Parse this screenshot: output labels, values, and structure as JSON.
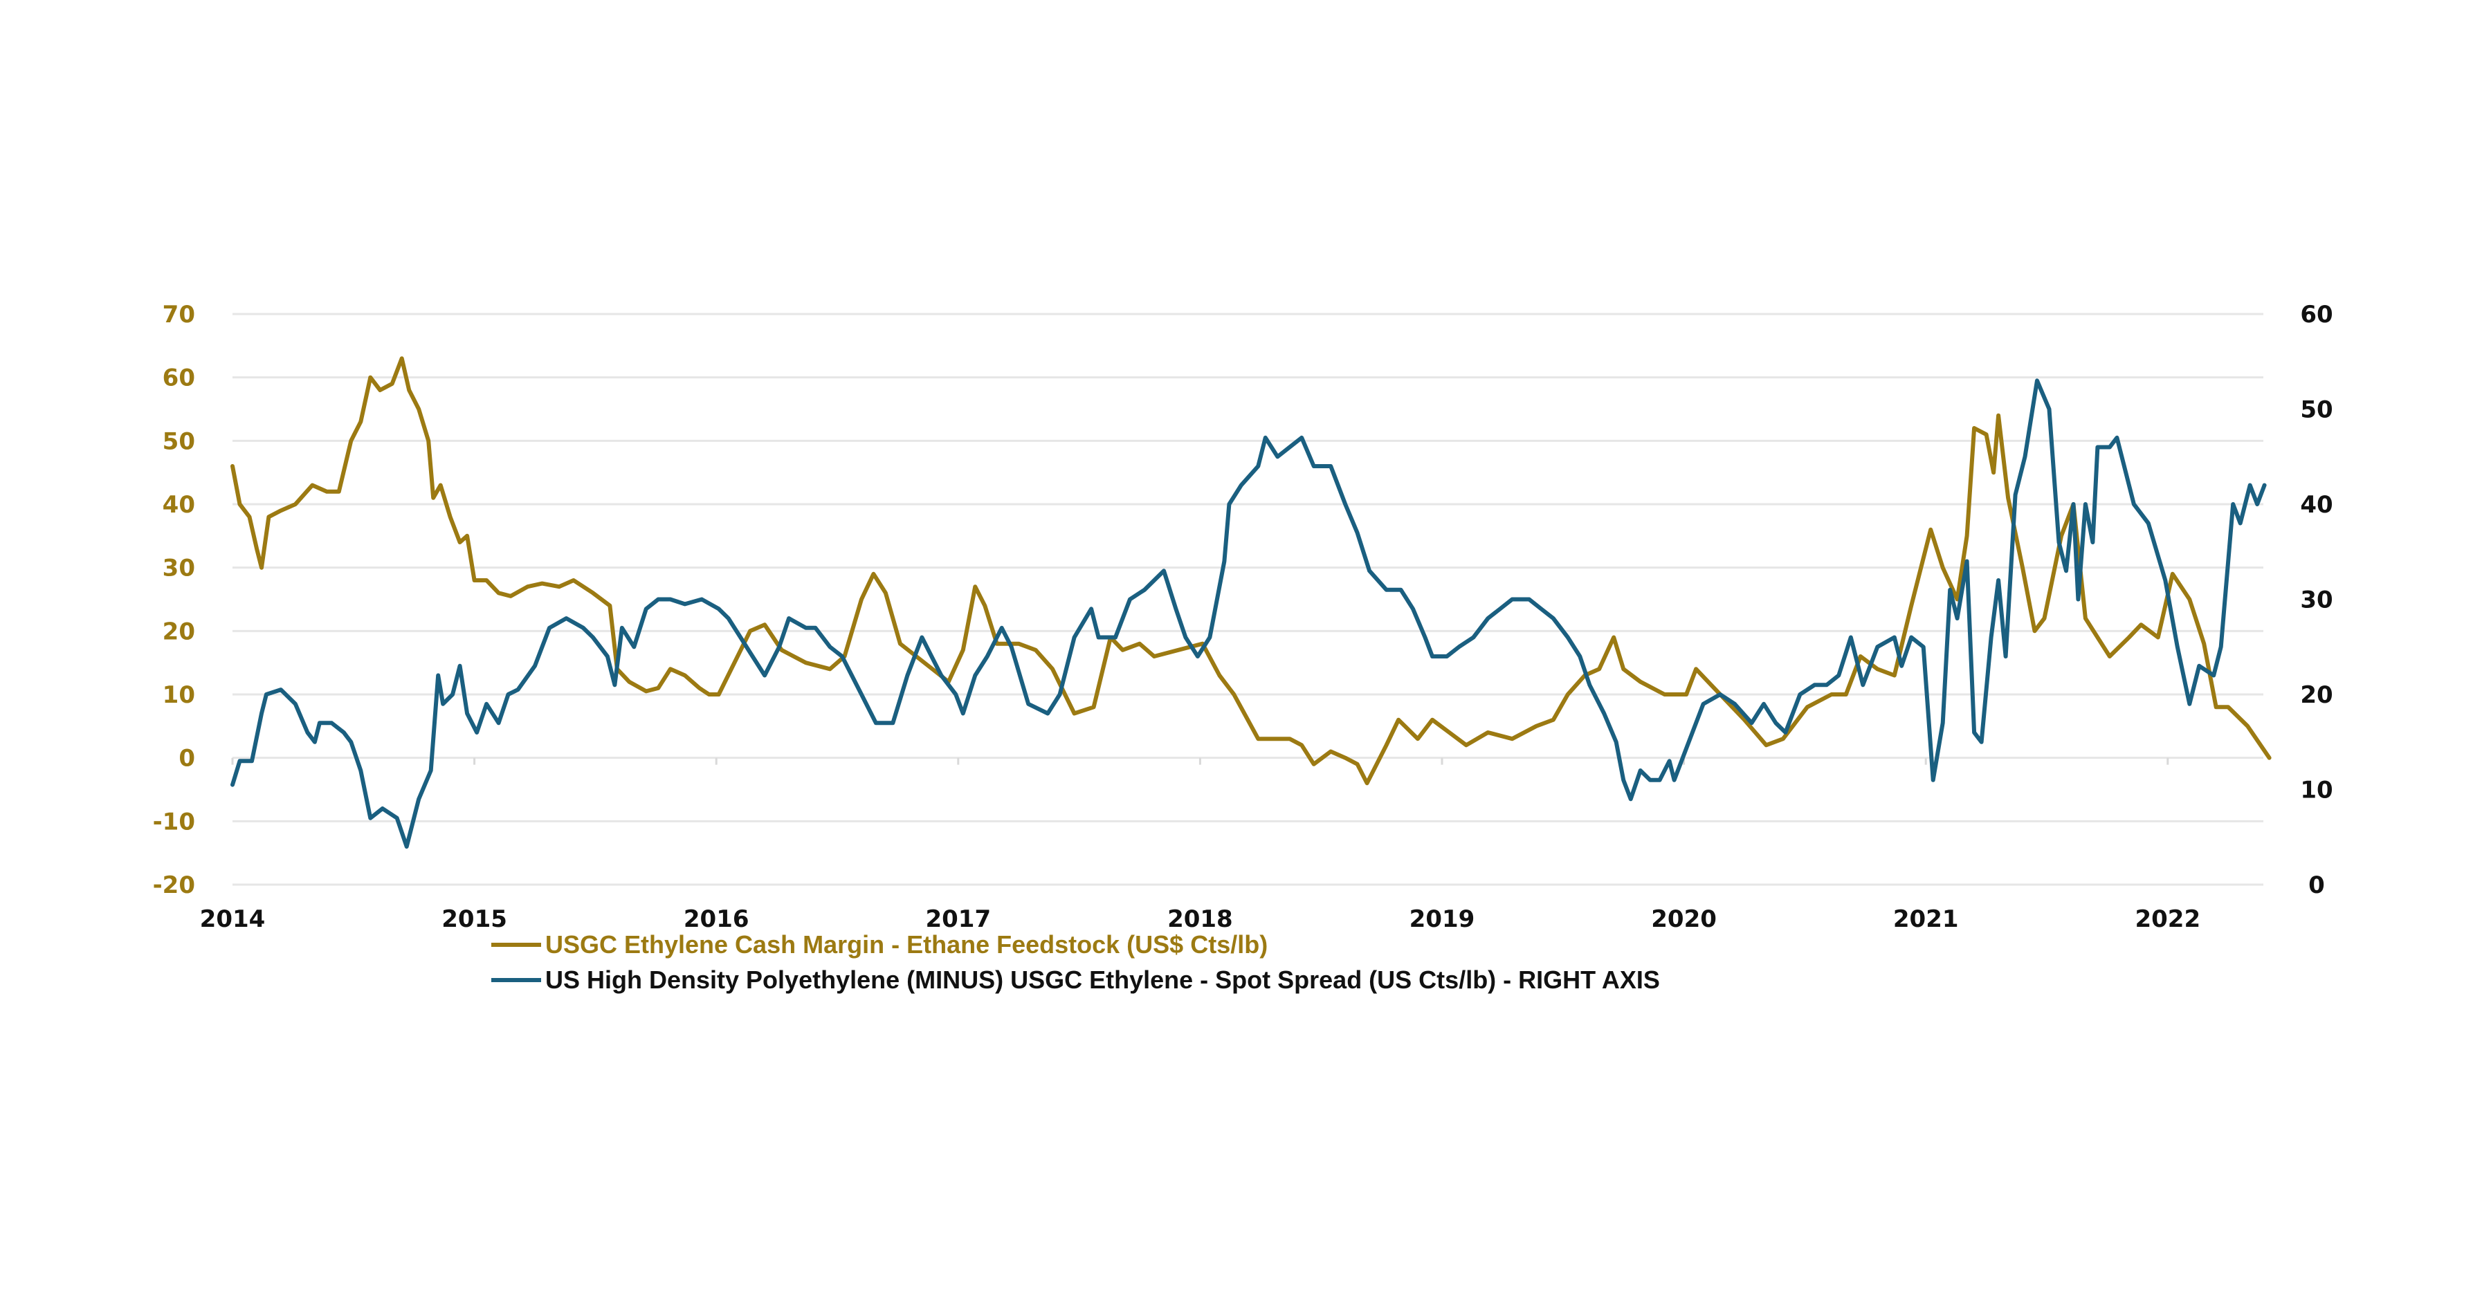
{
  "colors": {
    "series1": "#9C7A12",
    "series2": "#1A5F80",
    "grid": "#E6E6E6",
    "axis_text_right": "#111111"
  },
  "chart_data": {
    "type": "line",
    "title": "",
    "xlabel": "",
    "ylabel": "",
    "x_ticks": [
      "2014",
      "2015",
      "2016",
      "2017",
      "2018",
      "2019",
      "2020",
      "2021",
      "2022"
    ],
    "x_tick_values": [
      2014,
      2015,
      2016,
      2017,
      2018,
      2019,
      2020,
      2021,
      2022
    ],
    "xlim": [
      2014,
      2022.42
    ],
    "y_left": {
      "ticks": [
        "70",
        "60",
        "50",
        "40",
        "30",
        "20",
        "10",
        "0",
        "-10",
        "-20"
      ],
      "tick_values": [
        70,
        60,
        50,
        40,
        30,
        20,
        10,
        0,
        -10,
        -20
      ],
      "ylim": [
        -20,
        70
      ]
    },
    "y_right": {
      "ticks": [
        "60",
        "50",
        "40",
        "30",
        "20",
        "10",
        "0"
      ],
      "tick_values": [
        60,
        50,
        40,
        30,
        20,
        10,
        0
      ],
      "ylim": [
        0,
        60
      ]
    },
    "grid": true,
    "legend_position": "bottom",
    "series": [
      {
        "name": "USGC Ethylene Cash Margin - Ethane Feedstock (US$ Cts/lb)",
        "axis": "left",
        "x": [
          2014.0,
          2014.03,
          2014.07,
          2014.1,
          2014.12,
          2014.15,
          2014.2,
          2014.26,
          2014.33,
          2014.39,
          2014.44,
          2014.49,
          2014.53,
          2014.57,
          2014.61,
          2014.66,
          2014.7,
          2014.73,
          2014.77,
          2014.81,
          2014.83,
          2014.86,
          2014.9,
          2014.94,
          2014.97,
          2015.0,
          2015.05,
          2015.1,
          2015.15,
          2015.22,
          2015.28,
          2015.35,
          2015.41,
          2015.49,
          2015.56,
          2015.59,
          2015.64,
          2015.71,
          2015.76,
          2015.81,
          2015.87,
          2015.93,
          2015.97,
          2016.01,
          2016.14,
          2016.2,
          2016.27,
          2016.37,
          2016.47,
          2016.53,
          2016.6,
          2016.65,
          2016.7,
          2016.76,
          2016.86,
          2016.96,
          2017.02,
          2017.07,
          2017.11,
          2017.16,
          2017.25,
          2017.32,
          2017.39,
          2017.48,
          2017.56,
          2017.63,
          2017.68,
          2017.75,
          2017.81,
          2017.91,
          2018.01,
          2018.08,
          2018.14,
          2018.24,
          2018.37,
          2018.42,
          2018.47,
          2018.54,
          2018.6,
          2018.65,
          2018.69,
          2018.77,
          2018.82,
          2018.9,
          2018.96,
          2019.03,
          2019.1,
          2019.19,
          2019.29,
          2019.39,
          2019.46,
          2019.52,
          2019.59,
          2019.65,
          2019.71,
          2019.75,
          2019.82,
          2019.92,
          2020.01,
          2020.05,
          2020.15,
          2020.25,
          2020.34,
          2020.41,
          2020.51,
          2020.61,
          2020.67,
          2020.73,
          2020.8,
          2020.87,
          2020.94,
          2020.98,
          2021.02,
          2021.07,
          2021.13,
          2021.17,
          2021.2,
          2021.25,
          2021.28,
          2021.3,
          2021.34,
          2021.4,
          2021.45,
          2021.49,
          2021.56,
          2021.61,
          2021.66,
          2021.76,
          2021.84,
          2021.89,
          2021.96,
          2022.02,
          2022.09,
          2022.15,
          2022.2,
          2022.25,
          2022.33,
          2022.42
        ],
        "values": [
          46,
          40,
          38,
          33,
          30,
          38,
          39,
          40,
          43,
          42,
          42,
          50,
          53,
          60,
          58,
          59,
          63,
          58,
          55,
          50,
          41,
          43,
          38,
          34,
          35,
          28,
          28,
          26,
          25.5,
          27,
          27.5,
          27,
          28,
          26,
          24,
          14,
          12,
          10.5,
          11,
          14,
          13,
          11,
          10,
          10,
          20,
          21,
          17,
          15,
          14,
          16,
          25,
          29,
          26,
          18,
          15,
          12,
          17,
          27,
          24,
          18,
          18,
          17,
          14,
          7,
          8,
          19,
          17,
          18,
          16,
          17,
          18,
          13,
          10,
          3,
          3,
          2,
          -1,
          1,
          0,
          -1,
          -4,
          2,
          6,
          3,
          6,
          4,
          2,
          4,
          3,
          5,
          6,
          10,
          13,
          14,
          19,
          14,
          12,
          10,
          10,
          14,
          10,
          6,
          2,
          3,
          8,
          10,
          10,
          16,
          14,
          13,
          24,
          30,
          36,
          30,
          25,
          35,
          52,
          51,
          45,
          54,
          41,
          30,
          20,
          22,
          35,
          40,
          22,
          16,
          19,
          21,
          19,
          29,
          25,
          18,
          8,
          8,
          5,
          0
        ]
      },
      {
        "name": "US High Density Polyethylene (MINUS) USGC Ethylene - Spot Spread (US Cts/lb) - RIGHT AXIS",
        "axis": "right",
        "x": [
          2014.0,
          2014.03,
          2014.08,
          2014.12,
          2014.14,
          2014.2,
          2014.26,
          2014.31,
          2014.34,
          2014.36,
          2014.41,
          2014.46,
          2014.49,
          2014.53,
          2014.57,
          2014.62,
          2014.68,
          2014.72,
          2014.77,
          2014.82,
          2014.85,
          2014.87,
          2014.91,
          2014.94,
          2014.97,
          2015.01,
          2015.05,
          2015.1,
          2015.14,
          2015.18,
          2015.25,
          2015.31,
          2015.38,
          2015.45,
          2015.49,
          2015.55,
          2015.58,
          2015.61,
          2015.66,
          2015.71,
          2015.76,
          2015.81,
          2015.87,
          2015.94,
          2016.01,
          2016.05,
          2016.1,
          2016.15,
          2016.2,
          2016.26,
          2016.3,
          2016.37,
          2016.41,
          2016.47,
          2016.52,
          2016.6,
          2016.66,
          2016.73,
          2016.79,
          2016.85,
          2016.89,
          2016.93,
          2016.99,
          2017.02,
          2017.07,
          2017.12,
          2017.18,
          2017.22,
          2017.29,
          2017.37,
          2017.42,
          2017.48,
          2017.55,
          2017.58,
          2017.65,
          2017.71,
          2017.77,
          2017.85,
          2017.9,
          2017.94,
          2017.99,
          2018.04,
          2018.1,
          2018.12,
          2018.17,
          2018.24,
          2018.27,
          2018.32,
          2018.37,
          2018.42,
          2018.47,
          2018.54,
          2018.6,
          2018.65,
          2018.7,
          2018.77,
          2018.83,
          2018.88,
          2018.93,
          2018.96,
          2019.02,
          2019.07,
          2019.13,
          2019.19,
          2019.24,
          2019.29,
          2019.36,
          2019.41,
          2019.46,
          2019.52,
          2019.57,
          2019.61,
          2019.67,
          2019.72,
          2019.75,
          2019.78,
          2019.82,
          2019.86,
          2019.9,
          2019.94,
          2019.96,
          2020.02,
          2020.08,
          2020.15,
          2020.21,
          2020.28,
          2020.33,
          2020.38,
          2020.42,
          2020.48,
          2020.54,
          2020.59,
          2020.64,
          2020.69,
          2020.74,
          2020.8,
          2020.87,
          2020.9,
          2020.94,
          2020.99,
          2021.03,
          2021.07,
          2021.1,
          2021.13,
          2021.17,
          2021.2,
          2021.23,
          2021.27,
          2021.3,
          2021.33,
          2021.37,
          2021.41,
          2021.46,
          2021.51,
          2021.55,
          2021.58,
          2021.61,
          2021.63,
          2021.66,
          2021.69,
          2021.71,
          2021.76,
          2021.79,
          2021.86,
          2021.92,
          2021.99,
          2022.04,
          2022.09,
          2022.13,
          2022.19,
          2022.22,
          2022.27,
          2022.3,
          2022.34,
          2022.37,
          2022.4
        ],
        "values": [
          10.5,
          13,
          13,
          18,
          20,
          20.5,
          19,
          16,
          15,
          17,
          17,
          16,
          15,
          12,
          7,
          8,
          7,
          4,
          9,
          12,
          22,
          19,
          20,
          23,
          18,
          16,
          19,
          17,
          20,
          20.5,
          23,
          27,
          28,
          27,
          26,
          24,
          21,
          27,
          25,
          29,
          30,
          30,
          29.5,
          30,
          29,
          28,
          26,
          24,
          22,
          25,
          28,
          27,
          27,
          25,
          24,
          20,
          17,
          17,
          22,
          26,
          24,
          22,
          20,
          18,
          22,
          24,
          27,
          25,
          19,
          18,
          20,
          26,
          29,
          26,
          26,
          30,
          31,
          33,
          29,
          26,
          24,
          26,
          34,
          40,
          42,
          44,
          47,
          45,
          46,
          47,
          44,
          44,
          40,
          37,
          33,
          31,
          31,
          29,
          26,
          24,
          24,
          25,
          26,
          28,
          29,
          30,
          30,
          29,
          28,
          26,
          24,
          21,
          18,
          15,
          11,
          9,
          12,
          11,
          11,
          13,
          11,
          15,
          19,
          20,
          19,
          17,
          19,
          17,
          16,
          20,
          21,
          21,
          22,
          26,
          21,
          25,
          26,
          23,
          26,
          25,
          11,
          17,
          31,
          28,
          34,
          16,
          15,
          26,
          32,
          24,
          41,
          45,
          53,
          50,
          36,
          33,
          40,
          30,
          40,
          36,
          46,
          46,
          47,
          40,
          38,
          32,
          25,
          19,
          23,
          22,
          25,
          40,
          38,
          42,
          40,
          42
        ]
      }
    ]
  }
}
